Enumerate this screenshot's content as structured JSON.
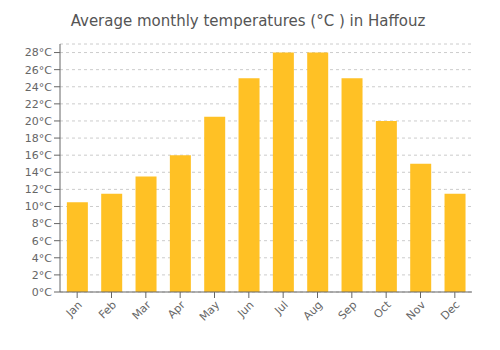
{
  "chart_data": {
    "type": "bar",
    "title": "Average monthly temperatures (°C ) in Haffouz",
    "categories": [
      "Jan",
      "Feb",
      "Mar",
      "Apr",
      "May",
      "Jun",
      "Jul",
      "Aug",
      "Sep",
      "Oct",
      "Nov",
      "Dec"
    ],
    "values": [
      10.5,
      11.5,
      13.5,
      16.0,
      20.5,
      25.0,
      28.0,
      28.0,
      25.0,
      20.0,
      15.0,
      11.5
    ],
    "color": "#FFC125",
    "ylim": [
      0,
      29
    ],
    "yticks": [
      {
        "value": 0,
        "label": "0°C"
      },
      {
        "value": 2,
        "label": "2°C"
      },
      {
        "value": 4,
        "label": "4°C"
      },
      {
        "value": 6,
        "label": "6°C"
      },
      {
        "value": 8,
        "label": "8°C"
      },
      {
        "value": 10,
        "label": "10°C"
      },
      {
        "value": 12,
        "label": "12°C"
      },
      {
        "value": 14,
        "label": "14°C"
      },
      {
        "value": 16,
        "label": "16°C"
      },
      {
        "value": 18,
        "label": "18°C"
      },
      {
        "value": 20,
        "label": "20°C"
      },
      {
        "value": 22,
        "label": "22°C"
      },
      {
        "value": 24,
        "label": "24°C"
      },
      {
        "value": 26,
        "label": "26°C"
      },
      {
        "value": 28,
        "label": "28°C"
      }
    ],
    "grid": true
  }
}
